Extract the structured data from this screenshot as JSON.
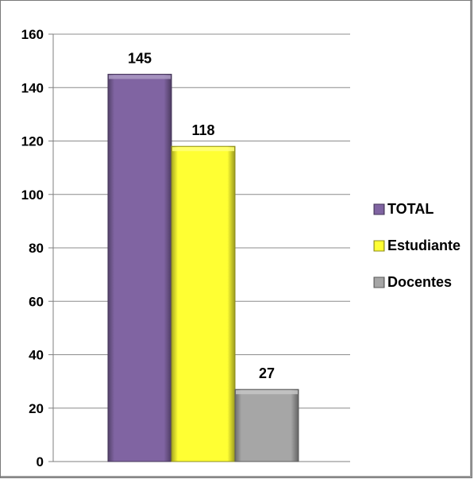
{
  "chart_data": {
    "type": "bar",
    "title": "",
    "xlabel": "",
    "ylabel": "",
    "ylim": [
      0,
      160
    ],
    "y_ticks": [
      0,
      20,
      40,
      60,
      80,
      100,
      120,
      140,
      160
    ],
    "grid": true,
    "legend_position": "right",
    "series": [
      {
        "name": "TOTAL",
        "value": 145,
        "color": "#8064a2"
      },
      {
        "name": "Estudiante",
        "value": 118,
        "color": "#ffff33"
      },
      {
        "name": "Docentes",
        "value": 27,
        "color": "#a6a6a6"
      }
    ]
  }
}
